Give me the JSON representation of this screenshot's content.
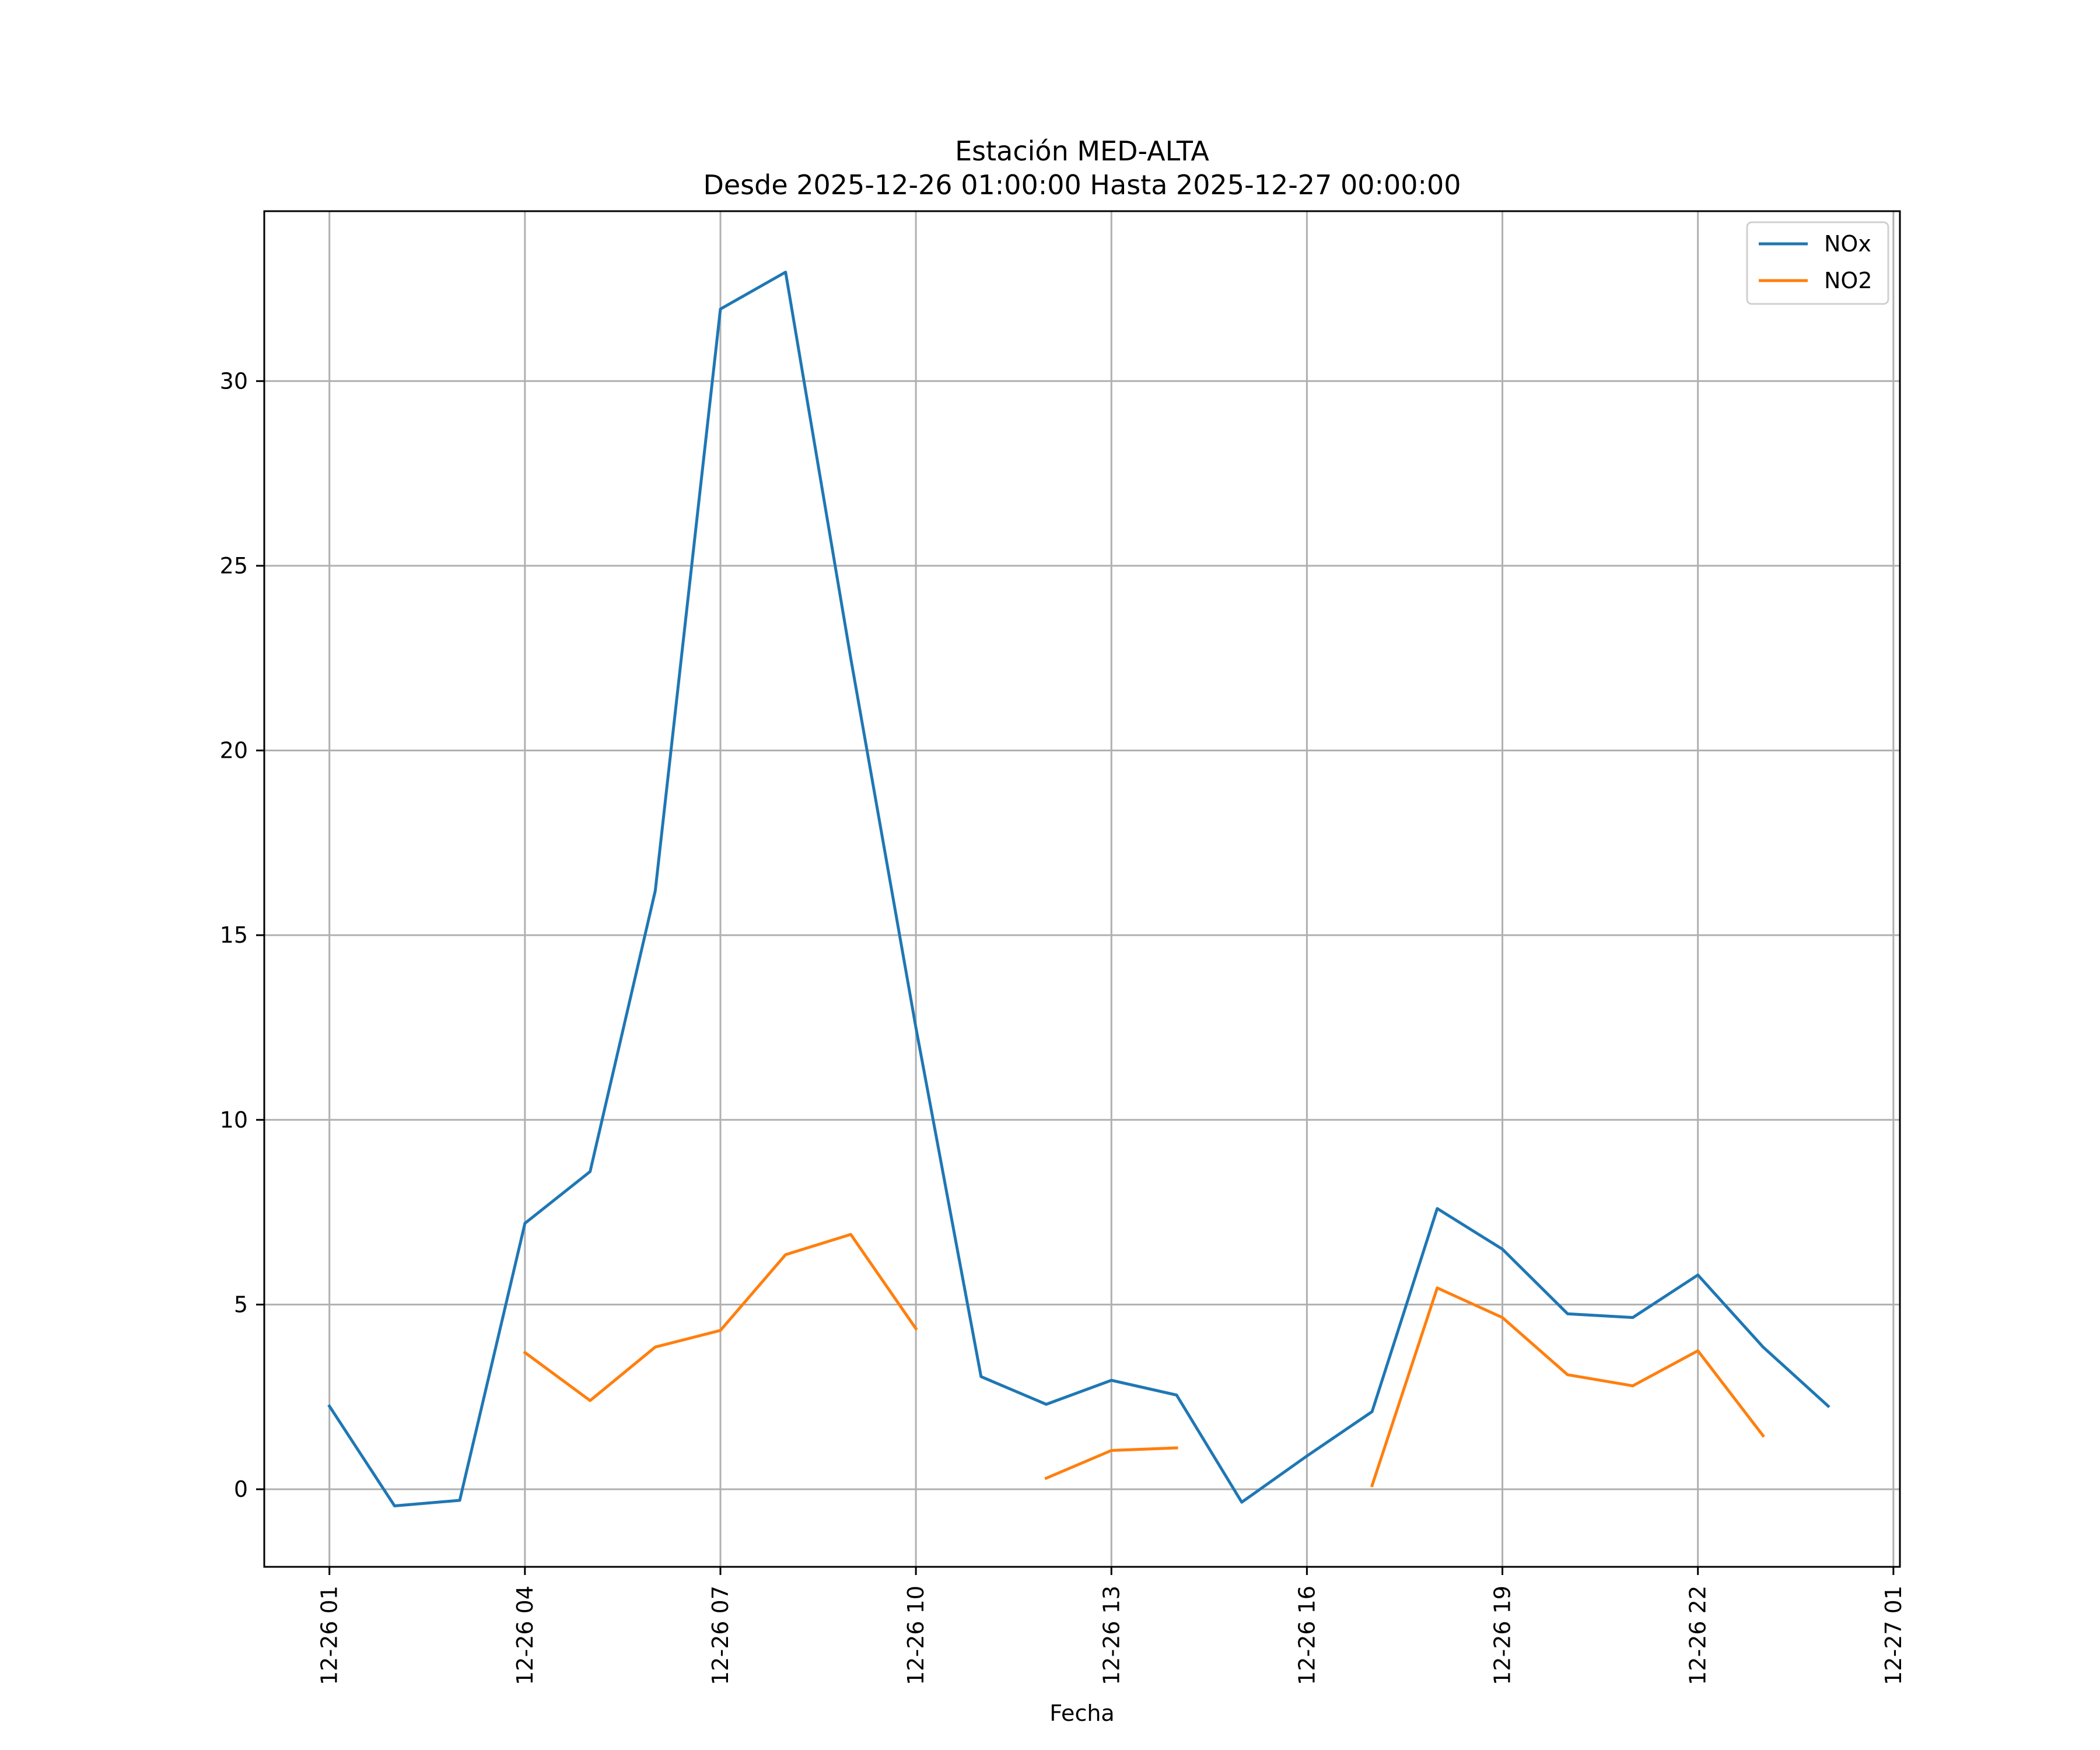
{
  "chart_data": {
    "type": "line",
    "title": "Estación MED-ALTA",
    "subtitle": "Desde 2025-12-26 01:00:00 Hasta 2025-12-27 00:00:00",
    "xlabel": "Fecha",
    "ylabel": "",
    "x": [
      "12-26 01",
      "12-26 02",
      "12-26 03",
      "12-26 04",
      "12-26 05",
      "12-26 06",
      "12-26 07",
      "12-26 08",
      "12-26 09",
      "12-26 10",
      "12-26 11",
      "12-26 12",
      "12-26 13",
      "12-26 14",
      "12-26 15",
      "12-26 16",
      "12-26 17",
      "12-26 18",
      "12-26 19",
      "12-26 20",
      "12-26 21",
      "12-26 22",
      "12-26 23",
      "12-27 00"
    ],
    "x_ticks": [
      "12-26 01",
      "12-26 04",
      "12-26 07",
      "12-26 10",
      "12-26 13",
      "12-26 16",
      "12-26 19",
      "12-26 22",
      "12-27 01"
    ],
    "x_tick_hours": [
      1,
      4,
      7,
      10,
      13,
      16,
      19,
      22,
      25
    ],
    "xlim_hours": [
      0.0,
      25.1
    ],
    "ylim": [
      -2.1,
      34.6
    ],
    "y_ticks": [
      0,
      5,
      10,
      15,
      20,
      25,
      30
    ],
    "grid": true,
    "legend_position": "top-right",
    "series": [
      {
        "name": "NOx",
        "color": "#1f77b4",
        "values": [
          2.25,
          -0.45,
          -0.3,
          7.2,
          8.6,
          16.2,
          31.95,
          32.95,
          22.5,
          12.5,
          3.05,
          2.3,
          2.95,
          2.55,
          -0.35,
          0.9,
          2.1,
          7.6,
          6.5,
          4.75,
          4.65,
          5.8,
          3.85,
          2.25
        ]
      },
      {
        "name": "NO2",
        "color": "#ff7f0e",
        "values": [
          null,
          null,
          null,
          3.7,
          2.4,
          3.85,
          4.3,
          6.35,
          6.9,
          4.35,
          null,
          0.3,
          1.05,
          1.12,
          null,
          null,
          0.1,
          5.45,
          4.65,
          3.1,
          2.8,
          3.75,
          1.45,
          null
        ]
      }
    ]
  }
}
